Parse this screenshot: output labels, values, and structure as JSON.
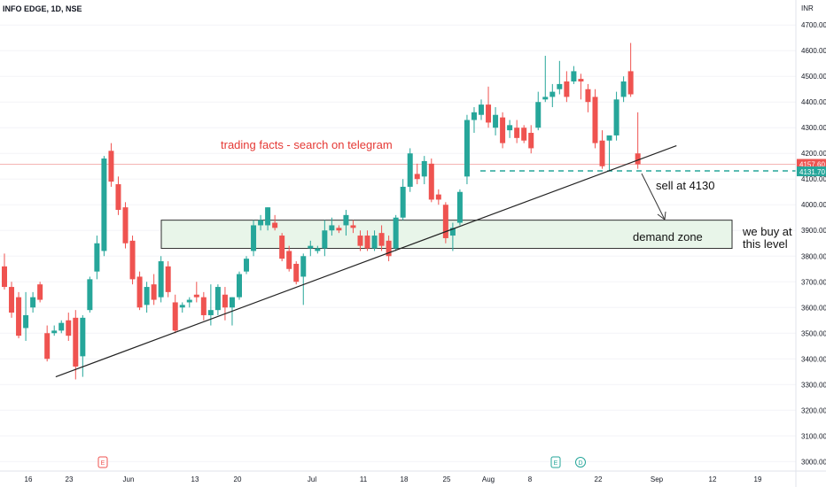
{
  "header": {
    "symbol_title": "INFO EDGE, 1D, NSE"
  },
  "price_axis": {
    "currency": "INR",
    "tick_labels": [
      "4700.00",
      "4600.00",
      "4500.00",
      "4400.00",
      "4300.00",
      "4200.00",
      "4100.00",
      "4000.00",
      "3900.00",
      "3800.00",
      "3700.00",
      "3600.00",
      "3500.00",
      "3400.00",
      "3300.00",
      "3200.00",
      "3100.00",
      "3000.00"
    ],
    "current_price_label": "4157.60",
    "second_price_label": "4131.70"
  },
  "time_axis": {
    "tick_labels": [
      "16",
      "23",
      "Jun",
      "13",
      "20",
      "Jul",
      "11",
      "18",
      "25",
      "Aug",
      "8",
      "22",
      "Sep",
      "12",
      "19"
    ],
    "event_markers": [
      "E",
      "E",
      "D"
    ]
  },
  "annotations": {
    "watermark": "trading facts - search on telegram",
    "sell_note": "sell at 4130",
    "zone_label": "demand zone",
    "buy_note_line1": "we buy at",
    "buy_note_line2": "this level"
  },
  "colors": {
    "up": "#26a69a",
    "down": "#ef5350",
    "zone_fill": "#e8f5e9",
    "zone_stroke": "#2e2e2e",
    "watermark": "#e53935",
    "dashed_level": "#26a69a",
    "trendline": "#222222"
  },
  "chart_data": {
    "type": "candlestick",
    "title": "INFO EDGE, 1D, NSE",
    "currency": "INR",
    "ylim": [
      2970,
      4780
    ],
    "candles": [
      {
        "o": 3760,
        "h": 3810,
        "l": 3670,
        "c": 3680
      },
      {
        "o": 3680,
        "h": 3700,
        "l": 3560,
        "c": 3580
      },
      {
        "o": 3640,
        "h": 3660,
        "l": 3480,
        "c": 3490
      },
      {
        "o": 3520,
        "h": 3660,
        "l": 3470,
        "c": 3570
      },
      {
        "o": 3600,
        "h": 3660,
        "l": 3580,
        "c": 3640
      },
      {
        "o": 3690,
        "h": 3700,
        "l": 3620,
        "c": 3630
      },
      {
        "o": 3500,
        "h": 3530,
        "l": 3390,
        "c": 3400
      },
      {
        "o": 3500,
        "h": 3530,
        "l": 3490,
        "c": 3510
      },
      {
        "o": 3510,
        "h": 3550,
        "l": 3500,
        "c": 3540
      },
      {
        "o": 3550,
        "h": 3580,
        "l": 3470,
        "c": 3490
      },
      {
        "o": 3560,
        "h": 3590,
        "l": 3320,
        "c": 3370
      },
      {
        "o": 3410,
        "h": 3570,
        "l": 3330,
        "c": 3560
      },
      {
        "o": 3590,
        "h": 3720,
        "l": 3580,
        "c": 3710
      },
      {
        "o": 3740,
        "h": 3880,
        "l": 3710,
        "c": 3850
      },
      {
        "o": 3820,
        "h": 4190,
        "l": 3800,
        "c": 4180
      },
      {
        "o": 4210,
        "h": 4240,
        "l": 4070,
        "c": 4090
      },
      {
        "o": 4080,
        "h": 4110,
        "l": 3960,
        "c": 3980
      },
      {
        "o": 3990,
        "h": 4010,
        "l": 3830,
        "c": 3850
      },
      {
        "o": 3860,
        "h": 3880,
        "l": 3690,
        "c": 3710
      },
      {
        "o": 3720,
        "h": 3740,
        "l": 3590,
        "c": 3600
      },
      {
        "o": 3610,
        "h": 3700,
        "l": 3580,
        "c": 3680
      },
      {
        "o": 3690,
        "h": 3730,
        "l": 3610,
        "c": 3630
      },
      {
        "o": 3640,
        "h": 3800,
        "l": 3620,
        "c": 3780
      },
      {
        "o": 3760,
        "h": 3780,
        "l": 3640,
        "c": 3660
      },
      {
        "o": 3620,
        "h": 3650,
        "l": 3500,
        "c": 3510
      },
      {
        "o": 3600,
        "h": 3620,
        "l": 3580,
        "c": 3610
      },
      {
        "o": 3620,
        "h": 3640,
        "l": 3600,
        "c": 3630
      },
      {
        "o": 3650,
        "h": 3700,
        "l": 3620,
        "c": 3640
      },
      {
        "o": 3640,
        "h": 3660,
        "l": 3550,
        "c": 3570
      },
      {
        "o": 3570,
        "h": 3690,
        "l": 3530,
        "c": 3590
      },
      {
        "o": 3590,
        "h": 3690,
        "l": 3570,
        "c": 3680
      },
      {
        "o": 3650,
        "h": 3680,
        "l": 3550,
        "c": 3600
      },
      {
        "o": 3600,
        "h": 3640,
        "l": 3530,
        "c": 3640
      },
      {
        "o": 3640,
        "h": 3740,
        "l": 3630,
        "c": 3730
      },
      {
        "o": 3740,
        "h": 3800,
        "l": 3730,
        "c": 3790
      },
      {
        "o": 3820,
        "h": 3940,
        "l": 3800,
        "c": 3920
      },
      {
        "o": 3920,
        "h": 3960,
        "l": 3900,
        "c": 3940
      },
      {
        "o": 3920,
        "h": 3990,
        "l": 3900,
        "c": 3990
      },
      {
        "o": 3930,
        "h": 3960,
        "l": 3900,
        "c": 3910
      },
      {
        "o": 3880,
        "h": 3890,
        "l": 3780,
        "c": 3790
      },
      {
        "o": 3820,
        "h": 3840,
        "l": 3740,
        "c": 3750
      },
      {
        "o": 3770,
        "h": 3780,
        "l": 3690,
        "c": 3700
      },
      {
        "o": 3720,
        "h": 3810,
        "l": 3610,
        "c": 3800
      },
      {
        "o": 3830,
        "h": 3860,
        "l": 3800,
        "c": 3840
      },
      {
        "o": 3820,
        "h": 3840,
        "l": 3810,
        "c": 3830
      },
      {
        "o": 3830,
        "h": 3940,
        "l": 3800,
        "c": 3900
      },
      {
        "o": 3900,
        "h": 3950,
        "l": 3880,
        "c": 3920
      },
      {
        "o": 3910,
        "h": 3920,
        "l": 3890,
        "c": 3900
      },
      {
        "o": 3920,
        "h": 3980,
        "l": 3880,
        "c": 3960
      },
      {
        "o": 3920,
        "h": 3940,
        "l": 3890,
        "c": 3910
      },
      {
        "o": 3880,
        "h": 3900,
        "l": 3820,
        "c": 3840
      },
      {
        "o": 3880,
        "h": 3900,
        "l": 3820,
        "c": 3830
      },
      {
        "o": 3830,
        "h": 3900,
        "l": 3820,
        "c": 3880
      },
      {
        "o": 3890,
        "h": 3920,
        "l": 3820,
        "c": 3840
      },
      {
        "o": 3860,
        "h": 3880,
        "l": 3780,
        "c": 3800
      },
      {
        "o": 3830,
        "h": 3960,
        "l": 3820,
        "c": 3950
      },
      {
        "o": 3950,
        "h": 4100,
        "l": 3940,
        "c": 4070
      },
      {
        "o": 4070,
        "h": 4220,
        "l": 4050,
        "c": 4200
      },
      {
        "o": 4120,
        "h": 4160,
        "l": 4080,
        "c": 4100
      },
      {
        "o": 4110,
        "h": 4190,
        "l": 4080,
        "c": 4170
      },
      {
        "o": 4160,
        "h": 4180,
        "l": 4010,
        "c": 4020
      },
      {
        "o": 4040,
        "h": 4060,
        "l": 4000,
        "c": 4020
      },
      {
        "o": 4000,
        "h": 4010,
        "l": 3850,
        "c": 3870
      },
      {
        "o": 3880,
        "h": 3930,
        "l": 3820,
        "c": 3910
      },
      {
        "o": 3930,
        "h": 4060,
        "l": 3920,
        "c": 4050
      },
      {
        "o": 4110,
        "h": 4350,
        "l": 4080,
        "c": 4330
      },
      {
        "o": 4330,
        "h": 4380,
        "l": 4280,
        "c": 4360
      },
      {
        "o": 4350,
        "h": 4410,
        "l": 4330,
        "c": 4390
      },
      {
        "o": 4390,
        "h": 4460,
        "l": 4300,
        "c": 4320
      },
      {
        "o": 4300,
        "h": 4380,
        "l": 4270,
        "c": 4350
      },
      {
        "o": 4340,
        "h": 4360,
        "l": 4220,
        "c": 4240
      },
      {
        "o": 4290,
        "h": 4330,
        "l": 4260,
        "c": 4310
      },
      {
        "o": 4300,
        "h": 4330,
        "l": 4240,
        "c": 4260
      },
      {
        "o": 4300,
        "h": 4310,
        "l": 4240,
        "c": 4250
      },
      {
        "o": 4280,
        "h": 4310,
        "l": 4200,
        "c": 4220
      },
      {
        "o": 4300,
        "h": 4440,
        "l": 4290,
        "c": 4400
      },
      {
        "o": 4410,
        "h": 4580,
        "l": 4400,
        "c": 4420
      },
      {
        "o": 4420,
        "h": 4470,
        "l": 4380,
        "c": 4440
      },
      {
        "o": 4450,
        "h": 4560,
        "l": 4430,
        "c": 4470
      },
      {
        "o": 4480,
        "h": 4520,
        "l": 4400,
        "c": 4420
      },
      {
        "o": 4480,
        "h": 4540,
        "l": 4470,
        "c": 4520
      },
      {
        "o": 4490,
        "h": 4510,
        "l": 4410,
        "c": 4480
      },
      {
        "o": 4450,
        "h": 4470,
        "l": 4360,
        "c": 4400
      },
      {
        "o": 4420,
        "h": 4450,
        "l": 4220,
        "c": 4240
      },
      {
        "o": 4250,
        "h": 4290,
        "l": 4140,
        "c": 4150
      },
      {
        "o": 4250,
        "h": 4260,
        "l": 4130,
        "c": 4270
      },
      {
        "o": 4270,
        "h": 4440,
        "l": 4250,
        "c": 4410
      },
      {
        "o": 4420,
        "h": 4500,
        "l": 4400,
        "c": 4480
      },
      {
        "o": 4520,
        "h": 4630,
        "l": 4420,
        "c": 4430
      },
      {
        "o": 4200,
        "h": 4360,
        "l": 4140,
        "c": 4157.6
      }
    ],
    "trendline": {
      "from": [
        0.07,
        3330
      ],
      "to": [
        0.85,
        4230
      ]
    },
    "demand_zone": {
      "from": 3940,
      "to": 3830
    },
    "levels": [
      4157.6,
      4131.7
    ]
  }
}
